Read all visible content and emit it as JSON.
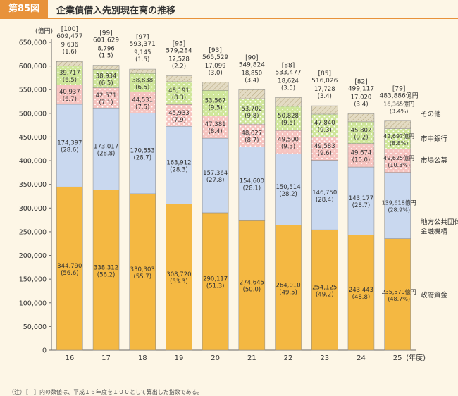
{
  "header": {
    "badge": "第85図",
    "title": "企業債借入先別現在高の推移"
  },
  "note": "（注）［　］内の数値は、平成１６年度を１００として算出した指数である。",
  "colors": {
    "government": "#f4b842",
    "local_public": "#c9d8ef",
    "market": "#f6c4c0",
    "city_bank": "#cfe69a",
    "other": "#e3dbc3",
    "background": "#fdf6e6"
  },
  "chart_data": {
    "type": "bar",
    "stacked": true,
    "title": "企業債借入先別現在高の推移",
    "ylabel": "(億円)",
    "xlabel": "(年度)",
    "ylim": [
      0,
      650000
    ],
    "yticks": [
      "0",
      "50,000",
      "100,000",
      "150,000",
      "200,000",
      "250,000",
      "300,000",
      "350,000",
      "400,000",
      "450,000",
      "500,000",
      "550,000",
      "600,000",
      "650,000"
    ],
    "categories": [
      "16",
      "17",
      "18",
      "19",
      "20",
      "21",
      "22",
      "23",
      "24",
      "25"
    ],
    "totals": [
      609477,
      601629,
      593371,
      579284,
      565529,
      549824,
      533477,
      516026,
      499117,
      483886
    ],
    "total_labels": [
      "609,477",
      "601,629",
      "593,371",
      "579,284",
      "565,529",
      "549,824",
      "533,477",
      "516,026",
      "499,117",
      "483,886億円"
    ],
    "index_labels": [
      "[100]",
      "[99]",
      "[97]",
      "[95]",
      "[93]",
      "[90]",
      "[88]",
      "[85]",
      "[82]",
      "[79]"
    ],
    "series": [
      {
        "name": "政府資金",
        "color_key": "government",
        "values": [
          344790,
          338312,
          330303,
          308720,
          290117,
          274645,
          264010,
          254125,
          243443,
          235579
        ],
        "labels": [
          "344,790",
          "338,312",
          "330,303",
          "308,720",
          "290,117",
          "274,645",
          "264,010",
          "254,125",
          "243,443",
          "235,579億円"
        ],
        "shares": [
          "(56.6)",
          "(56.2)",
          "(55.7)",
          "(53.3)",
          "(51.3)",
          "(50.0)",
          "(49.5)",
          "(49.2)",
          "(48.8)",
          "(48.7%)"
        ]
      },
      {
        "name": "地方公共団体金融機構",
        "color_key": "local_public",
        "values": [
          174397,
          173017,
          170553,
          163912,
          157364,
          154600,
          150514,
          146750,
          143177,
          139618
        ],
        "labels": [
          "174,397",
          "173,017",
          "170,553",
          "163,912",
          "157,364",
          "154,600",
          "150,514",
          "146,750",
          "143,177",
          "139,618億円"
        ],
        "shares": [
          "(28.6)",
          "(28.8)",
          "(28.7)",
          "(28.3)",
          "(27.8)",
          "(28.1)",
          "(28.2)",
          "(28.4)",
          "(28.7)",
          "(28.9%)"
        ]
      },
      {
        "name": "市場公募",
        "color_key": "market",
        "values": [
          40937,
          42571,
          44531,
          45933,
          47381,
          48027,
          49500,
          49583,
          49674,
          49625
        ],
        "labels": [
          "40,937",
          "42,571",
          "44,531",
          "45,933",
          "47,381",
          "48,027",
          "49,500",
          "49,583",
          "49,674",
          "49,625億円"
        ],
        "shares": [
          "(6.7)",
          "(7.1)",
          "(7.5)",
          "(7.9)",
          "(8.4)",
          "(8.7)",
          "(9.3)",
          "(9.6)",
          "(10.0)",
          "(10.3%)"
        ]
      },
      {
        "name": "市中銀行",
        "color_key": "city_bank",
        "values": [
          39717,
          38934,
          38838,
          48191,
          53567,
          53702,
          50828,
          47840,
          45802,
          42697
        ],
        "labels": [
          "39,717",
          "38,934",
          "38,838",
          "48,191",
          "53,567",
          "53,702",
          "50,828",
          "47,840",
          "45,802",
          "42,697億円"
        ],
        "shares": [
          "(6.5)",
          "(6.5)",
          "(6.5)",
          "(8.3)",
          "(9.5)",
          "(9.8)",
          "(9.5)",
          "(9.3)",
          "(9.2)",
          "(8.8%)"
        ]
      },
      {
        "name": "その他",
        "color_key": "other",
        "values": [
          9636,
          8796,
          9145,
          12528,
          17099,
          18850,
          18624,
          17728,
          17020,
          16365
        ],
        "labels": [
          "9,636",
          "8,796",
          "9,145",
          "12,528",
          "17,099",
          "18,850",
          "18,624",
          "17,728",
          "17,020",
          "16,365億円"
        ],
        "shares": [
          "(1.6)",
          "(1.5)",
          "(1.5)",
          "(2.2)",
          "(3.0)",
          "(3.4)",
          "(3.5)",
          "(3.4)",
          "(3.4)",
          "(3.4%)"
        ]
      }
    ],
    "legend": [
      {
        "label": "その他",
        "anchor": "other"
      },
      {
        "label": "市中銀行",
        "anchor": "city_bank"
      },
      {
        "label": "市場公募",
        "anchor": "market"
      },
      {
        "label": "地方公共団体",
        "anchor": "local_public"
      },
      {
        "label": "金融機構",
        "anchor": "local_public"
      },
      {
        "label": "政府資金",
        "anchor": "government"
      }
    ]
  }
}
